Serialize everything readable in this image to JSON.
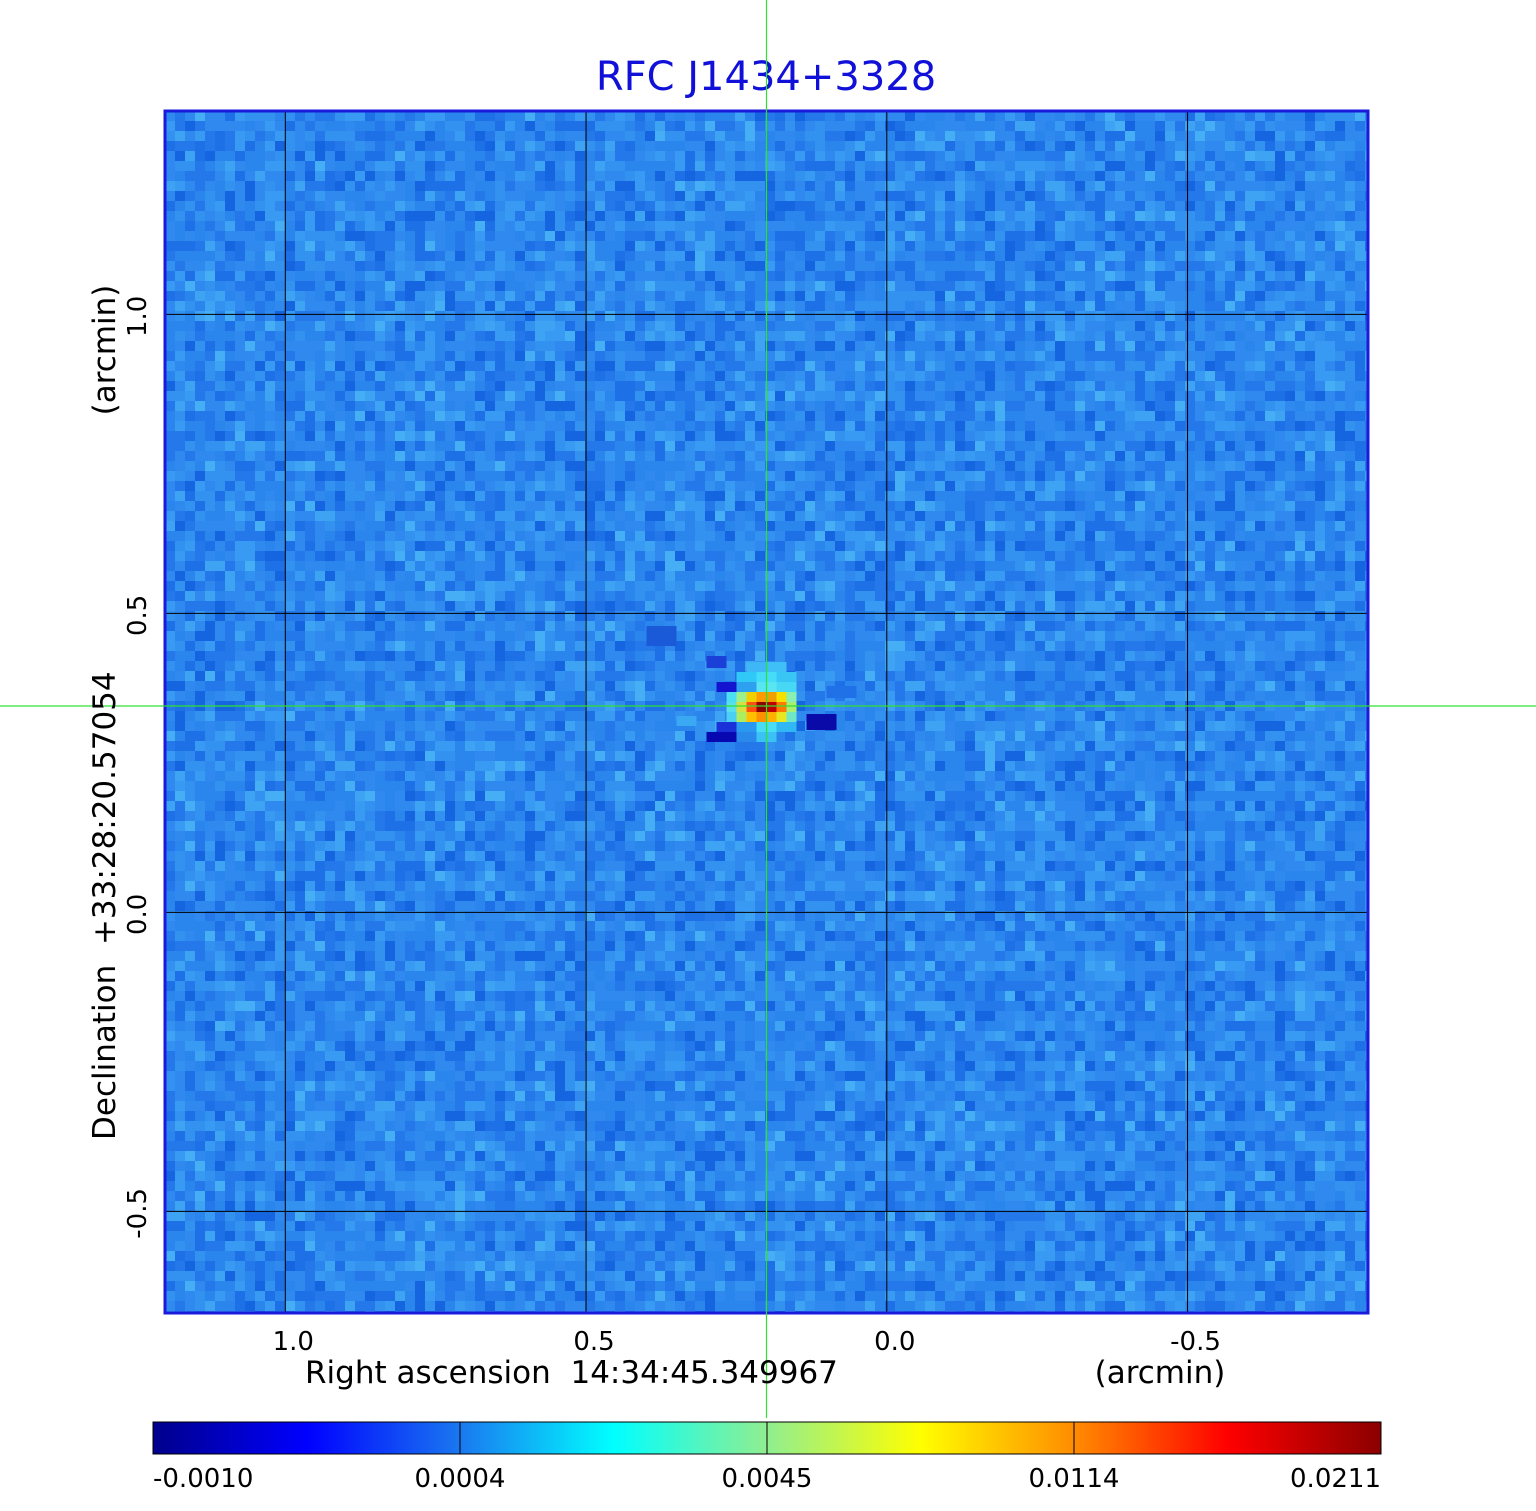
{
  "chart_data": {
    "type": "heatmap",
    "title": "RFC J1434+3328",
    "xlabel": "Right ascension  14:34:45.349967",
    "xunit": "(arcmin)",
    "ylabel": "Declination  +33:28:20.57054",
    "yunit": "(arcmin)",
    "x_ticks": [
      1.0,
      0.5,
      0.0,
      -0.5
    ],
    "x_tick_labels": [
      "1.0",
      "0.5",
      "0.0",
      "-0.5"
    ],
    "y_ticks": [
      1.0,
      0.5,
      0.0,
      -0.5
    ],
    "y_tick_labels": [
      "1.0",
      "0.5",
      "0.0",
      "-0.5"
    ],
    "xlim": [
      1.2,
      -0.8
    ],
    "ylim": [
      -0.67,
      1.34
    ],
    "grid": true,
    "crosshair": {
      "x": 0.2,
      "y": 0.345
    },
    "source_peak": {
      "x": 0.2,
      "y": 0.345,
      "value": 0.0211
    },
    "colormap": "jet",
    "colorbar": {
      "ticks": [
        -0.001,
        0.0004,
        0.0045,
        0.0114,
        0.0211
      ],
      "labels": [
        "-0.0010",
        "0.0004",
        "0.0045",
        "0.0114",
        "0.0211"
      ],
      "colors": [
        "#00008b",
        "#0000ff",
        "#1a78f0",
        "#00ffff",
        "#90ee90",
        "#ffff00",
        "#ff8c00",
        "#ff0000",
        "#8b0000"
      ]
    }
  }
}
